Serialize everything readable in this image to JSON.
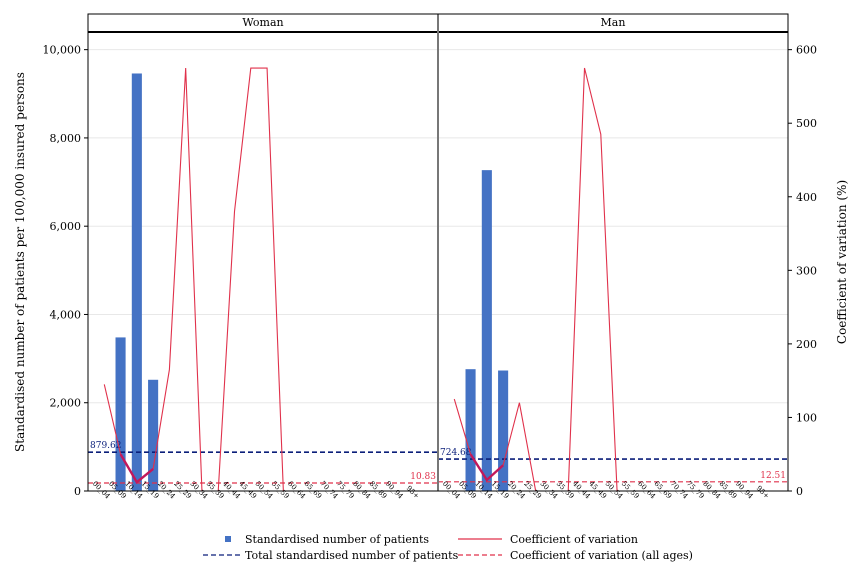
{
  "chart_data": {
    "type": "bar",
    "y_left": {
      "label": "Standardised number of patients per 100,000 insured persons",
      "lim": [
        0,
        10400
      ],
      "ticks": [
        0,
        2000,
        4000,
        6000,
        8000,
        10000
      ],
      "tick_labels": [
        "0",
        "2,000",
        "4,000",
        "6,000",
        "8,000",
        "10,000"
      ]
    },
    "y_right": {
      "label": "Coefficient of variation (%)",
      "lim": [
        0,
        624
      ],
      "ticks": [
        0,
        100,
        200,
        300,
        400,
        500,
        600
      ],
      "tick_labels": [
        "0",
        "100",
        "200",
        "300",
        "400",
        "500",
        "600"
      ]
    },
    "categories": [
      "00_04",
      "05_09",
      "10_14",
      "15_19",
      "20_24",
      "25_29",
      "30_34",
      "35_39",
      "40_44",
      "45_49",
      "50_54",
      "55_59",
      "60_64",
      "65_69",
      "70_74",
      "75_79",
      "80_84",
      "85_89",
      "90_94",
      "95+"
    ],
    "panels": [
      {
        "title": "Woman",
        "patients": [
          null,
          3480,
          9460,
          2520,
          null,
          null,
          null,
          null,
          null,
          null,
          null,
          null,
          null,
          null,
          null,
          null,
          null,
          null,
          null,
          null
        ],
        "cv": [
          145,
          50,
          12,
          30,
          165,
          575,
          0,
          0,
          380,
          575,
          575,
          0,
          null,
          null,
          null,
          null,
          null,
          null,
          null,
          null
        ],
        "total_patients": 879.62,
        "total_patients_label": "879.62",
        "cv_all": 10.83,
        "cv_all_label": "10.83"
      },
      {
        "title": "Man",
        "patients": [
          null,
          2760,
          7270,
          2730,
          null,
          null,
          null,
          null,
          null,
          null,
          null,
          null,
          null,
          null,
          null,
          null,
          null,
          null,
          null,
          null
        ],
        "cv": [
          125,
          50,
          15,
          35,
          120,
          0,
          0,
          0,
          575,
          485,
          0,
          null,
          null,
          null,
          null,
          null,
          null,
          null,
          null,
          null
        ],
        "total_patients": 724.68,
        "total_patients_label": "724.68",
        "cv_all": 12.51,
        "cv_all_label": "12.51"
      }
    ],
    "legend": {
      "position": "bottom",
      "items": [
        {
          "label": "Standardised number of patients",
          "style": "bar",
          "color": "#4472c4"
        },
        {
          "label": "Coefficient of variation",
          "style": "line",
          "color": "#e0314b"
        },
        {
          "label": "Total standardised number of patients",
          "style": "dash",
          "color": "#0b1f7a"
        },
        {
          "label": "Coefficient of variation (all ages)",
          "style": "dash",
          "color": "#e0314b"
        }
      ]
    },
    "colors": {
      "bar": "#4472c4",
      "cv": "#e0314b",
      "cv_bold": "#c2185b",
      "total": "#0b1f7a",
      "cv_all": "#e0314b"
    }
  }
}
